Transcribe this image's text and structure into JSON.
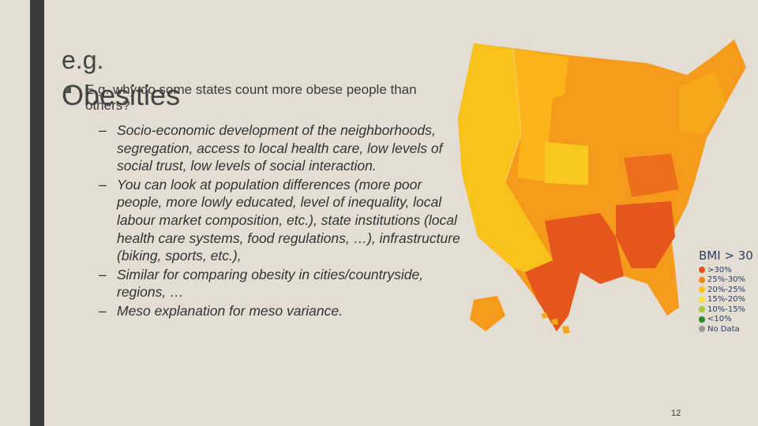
{
  "title": {
    "line1": "e.g.",
    "line2": "Obesities"
  },
  "bullet": "E.g. why do some states count more obese people than others?",
  "sub_bullets": [
    "Socio-economic development of the neighborhoods, segregation, access to local health care, low levels of social trust, low levels of social interaction.",
    "You can look at population differences (more poor people, more lowly educated, level of inequality, local labour market composition, etc.), state institutions (local health care systems, food regulations, …), infrastructure (biking, sports, etc.),",
    "Similar for comparing obesity in cities/countryside, regions, …",
    "Meso explanation for meso variance."
  ],
  "legend": {
    "title": "BMI > 30",
    "items": [
      {
        "label": ">30%",
        "color": "#e0531c"
      },
      {
        "label": "25%-30%",
        "color": "#f28a1a"
      },
      {
        "label": "20%-25%",
        "color": "#f7c21a"
      },
      {
        "label": "15%-20%",
        "color": "#f3e33a"
      },
      {
        "label": "10%-15%",
        "color": "#9ccc3a"
      },
      {
        "label": "<10%",
        "color": "#2a8a2a"
      },
      {
        "label": "No Data",
        "color": "#9a9a9a"
      }
    ]
  },
  "page_number": "12"
}
